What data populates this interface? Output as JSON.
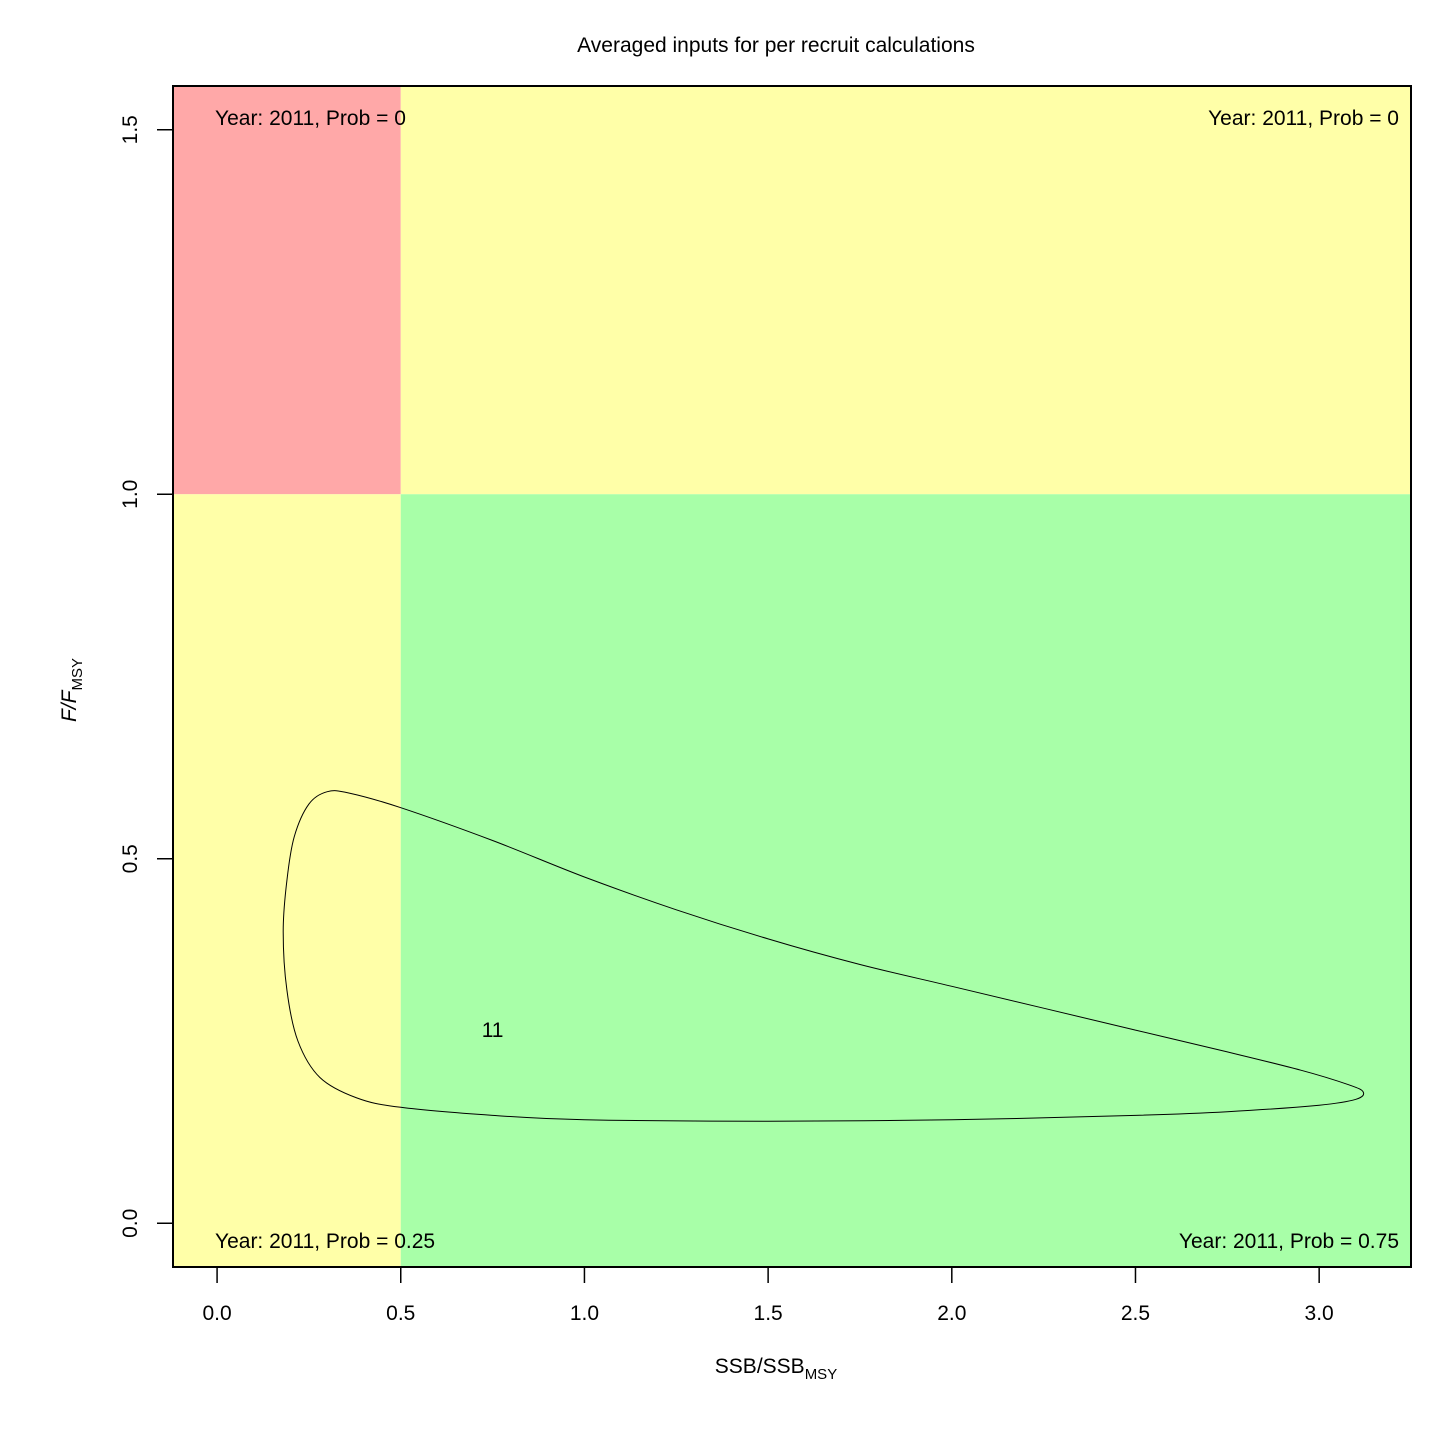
{
  "chart_data": {
    "type": "scatter",
    "title": "Averaged inputs for per recruit calculations",
    "xlabel": {
      "main": "SSB/SSB",
      "sub": "MSY"
    },
    "ylabel": {
      "main": "F/F",
      "sub": "MSY"
    },
    "xlim": [
      -0.12,
      3.25
    ],
    "ylim": [
      -0.06,
      1.56
    ],
    "x_ticks": [
      "0.0",
      "0.5",
      "1.0",
      "1.5",
      "2.0",
      "2.5",
      "3.0"
    ],
    "y_ticks": [
      "0.0",
      "0.5",
      "1.0",
      "1.5"
    ],
    "grid": false,
    "regions": [
      {
        "name": "upper-left",
        "x": [
          -0.12,
          0.5
        ],
        "y": [
          1.0,
          1.56
        ],
        "color": "#ffa8a8"
      },
      {
        "name": "upper-right",
        "x": [
          0.5,
          3.25
        ],
        "y": [
          1.0,
          1.56
        ],
        "color": "#ffffa8"
      },
      {
        "name": "lower-left",
        "x": [
          -0.12,
          0.5
        ],
        "y": [
          -0.06,
          1.0
        ],
        "color": "#ffffa8"
      },
      {
        "name": "lower-right",
        "x": [
          0.5,
          3.25
        ],
        "y": [
          -0.06,
          1.0
        ],
        "color": "#a8ffa8"
      }
    ],
    "corner_labels": {
      "top_left": "Year: 2011, Prob = 0",
      "top_right": "Year: 2011, Prob = 0",
      "bottom_left": "Year: 2011, Prob = 0.25",
      "bottom_right": "Year: 2011, Prob = 0.75"
    },
    "point_label": {
      "text": "11",
      "x": 0.75,
      "y": 0.265
    },
    "contour": [
      [
        0.36,
        0.59
      ],
      [
        0.5,
        0.57
      ],
      [
        0.75,
        0.525
      ],
      [
        1.0,
        0.475
      ],
      [
        1.25,
        0.43
      ],
      [
        1.5,
        0.39
      ],
      [
        1.75,
        0.355
      ],
      [
        2.0,
        0.325
      ],
      [
        2.25,
        0.295
      ],
      [
        2.5,
        0.265
      ],
      [
        2.75,
        0.235
      ],
      [
        2.95,
        0.21
      ],
      [
        3.08,
        0.19
      ],
      [
        3.12,
        0.18
      ],
      [
        3.1,
        0.17
      ],
      [
        3.0,
        0.162
      ],
      [
        2.75,
        0.153
      ],
      [
        2.5,
        0.148
      ],
      [
        2.0,
        0.142
      ],
      [
        1.5,
        0.14
      ],
      [
        1.0,
        0.142
      ],
      [
        0.75,
        0.148
      ],
      [
        0.5,
        0.159
      ],
      [
        0.38,
        0.172
      ],
      [
        0.28,
        0.2
      ],
      [
        0.22,
        0.25
      ],
      [
        0.19,
        0.32
      ],
      [
        0.18,
        0.4
      ],
      [
        0.19,
        0.47
      ],
      [
        0.21,
        0.53
      ],
      [
        0.25,
        0.575
      ],
      [
        0.3,
        0.592
      ],
      [
        0.36,
        0.59
      ]
    ]
  }
}
